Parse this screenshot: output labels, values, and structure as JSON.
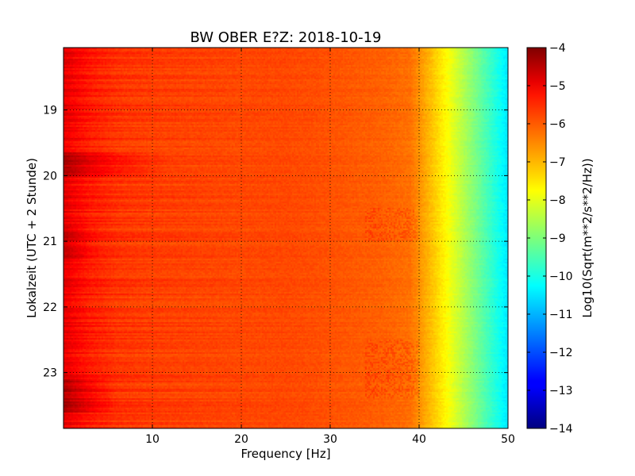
{
  "chart_data": {
    "type": "heatmap",
    "title": "BW OBER E?Z: 2018-10-19",
    "xlabel": "Frequency [Hz]",
    "ylabel": "Lokalzeit (UTC + 2 Stunde)",
    "xlim": [
      0,
      50
    ],
    "ylim": [
      18.05,
      23.85
    ],
    "x_ticks": [
      10,
      20,
      30,
      40,
      50
    ],
    "x_tick_labels": [
      "10",
      "20",
      "30",
      "40",
      "50"
    ],
    "y_ticks": [
      19,
      20,
      21,
      22,
      23
    ],
    "y_tick_labels": [
      "19",
      "20",
      "21",
      "22",
      "23"
    ],
    "grid": true,
    "colormap": "jet",
    "colorbar": {
      "label": "Log10(Sqrt(m**2/s**2/Hz))",
      "range": [
        -14,
        -4
      ],
      "ticks": [
        -4,
        -5,
        -6,
        -7,
        -8,
        -9,
        -10,
        -11,
        -12,
        -13,
        -14
      ],
      "tick_labels": [
        "−4",
        "−5",
        "−6",
        "−7",
        "−8",
        "−9",
        "−10",
        "−11",
        "−12",
        "−13",
        "−14"
      ]
    },
    "frequency_profile": {
      "frequency_hz": [
        0,
        1,
        3,
        6,
        10,
        15,
        20,
        25,
        28,
        32,
        36,
        39,
        41,
        43,
        45,
        47,
        49,
        50
      ],
      "value": [
        -5.0,
        -5.2,
        -5.5,
        -5.75,
        -5.85,
        -5.9,
        -5.95,
        -5.95,
        -6.0,
        -6.1,
        -6.2,
        -6.35,
        -7.0,
        -7.7,
        -8.5,
        -9.3,
        -10.1,
        -10.5
      ]
    },
    "high_energy_bands": [
      {
        "time_start": 19.65,
        "time_end": 20.0,
        "freq_max_hz": 12,
        "extra": 0.6
      },
      {
        "time_start": 23.1,
        "time_end": 23.6,
        "freq_max_hz": 6,
        "extra": 0.55
      },
      {
        "time_start": 20.75,
        "time_end": 21.3,
        "freq_max_hz": 4,
        "extra": 0.3
      }
    ],
    "notch_bands": [
      {
        "time_start": 20.5,
        "time_end": 21.0,
        "freq_start_hz": 34,
        "freq_end_hz": 40,
        "extra": 0.3
      },
      {
        "time_start": 22.5,
        "time_end": 23.4,
        "freq_start_hz": 34,
        "freq_end_hz": 40,
        "extra": 0.3
      }
    ]
  }
}
